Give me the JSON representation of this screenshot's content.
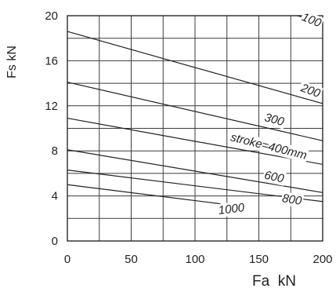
{
  "chart_data": {
    "type": "line",
    "title": "",
    "xlabel": "Fa  kN",
    "ylabel": "Fs  kN",
    "xlim": [
      0,
      200
    ],
    "ylim": [
      0,
      20
    ],
    "x_ticks": [
      0,
      50,
      100,
      150,
      200
    ],
    "y_ticks": [
      0,
      4,
      8,
      12,
      16,
      20
    ],
    "x_ticks_text": [
      "0",
      "50",
      "100",
      "150",
      "200"
    ],
    "y_ticks_text": [
      "0",
      "4",
      "8",
      "12",
      "16",
      "20"
    ],
    "grid": true,
    "grid_x_step": 25,
    "grid_y_step": 2,
    "line_color": "#222222",
    "series": [
      {
        "name": "100",
        "label_text": "100",
        "x": [
          180,
          200
        ],
        "y": [
          20.0,
          19.4
        ]
      },
      {
        "name": "200",
        "label_text": "200",
        "x": [
          0,
          200
        ],
        "y": [
          18.6,
          12.2
        ]
      },
      {
        "name": "300",
        "label_text": "300",
        "x": [
          0,
          200
        ],
        "y": [
          14.1,
          8.9
        ]
      },
      {
        "name": "400",
        "label_text": "stroke=400mm",
        "x": [
          0,
          200
        ],
        "y": [
          10.9,
          6.8
        ]
      },
      {
        "name": "600",
        "label_text": "600",
        "x": [
          0,
          200
        ],
        "y": [
          8.1,
          4.3
        ]
      },
      {
        "name": "800",
        "label_text": "800",
        "x": [
          0,
          200
        ],
        "y": [
          6.3,
          3.5
        ]
      },
      {
        "name": "1000",
        "label_text": "1000",
        "x": [
          0,
          120
        ],
        "y": [
          5.0,
          3.3
        ]
      }
    ]
  }
}
